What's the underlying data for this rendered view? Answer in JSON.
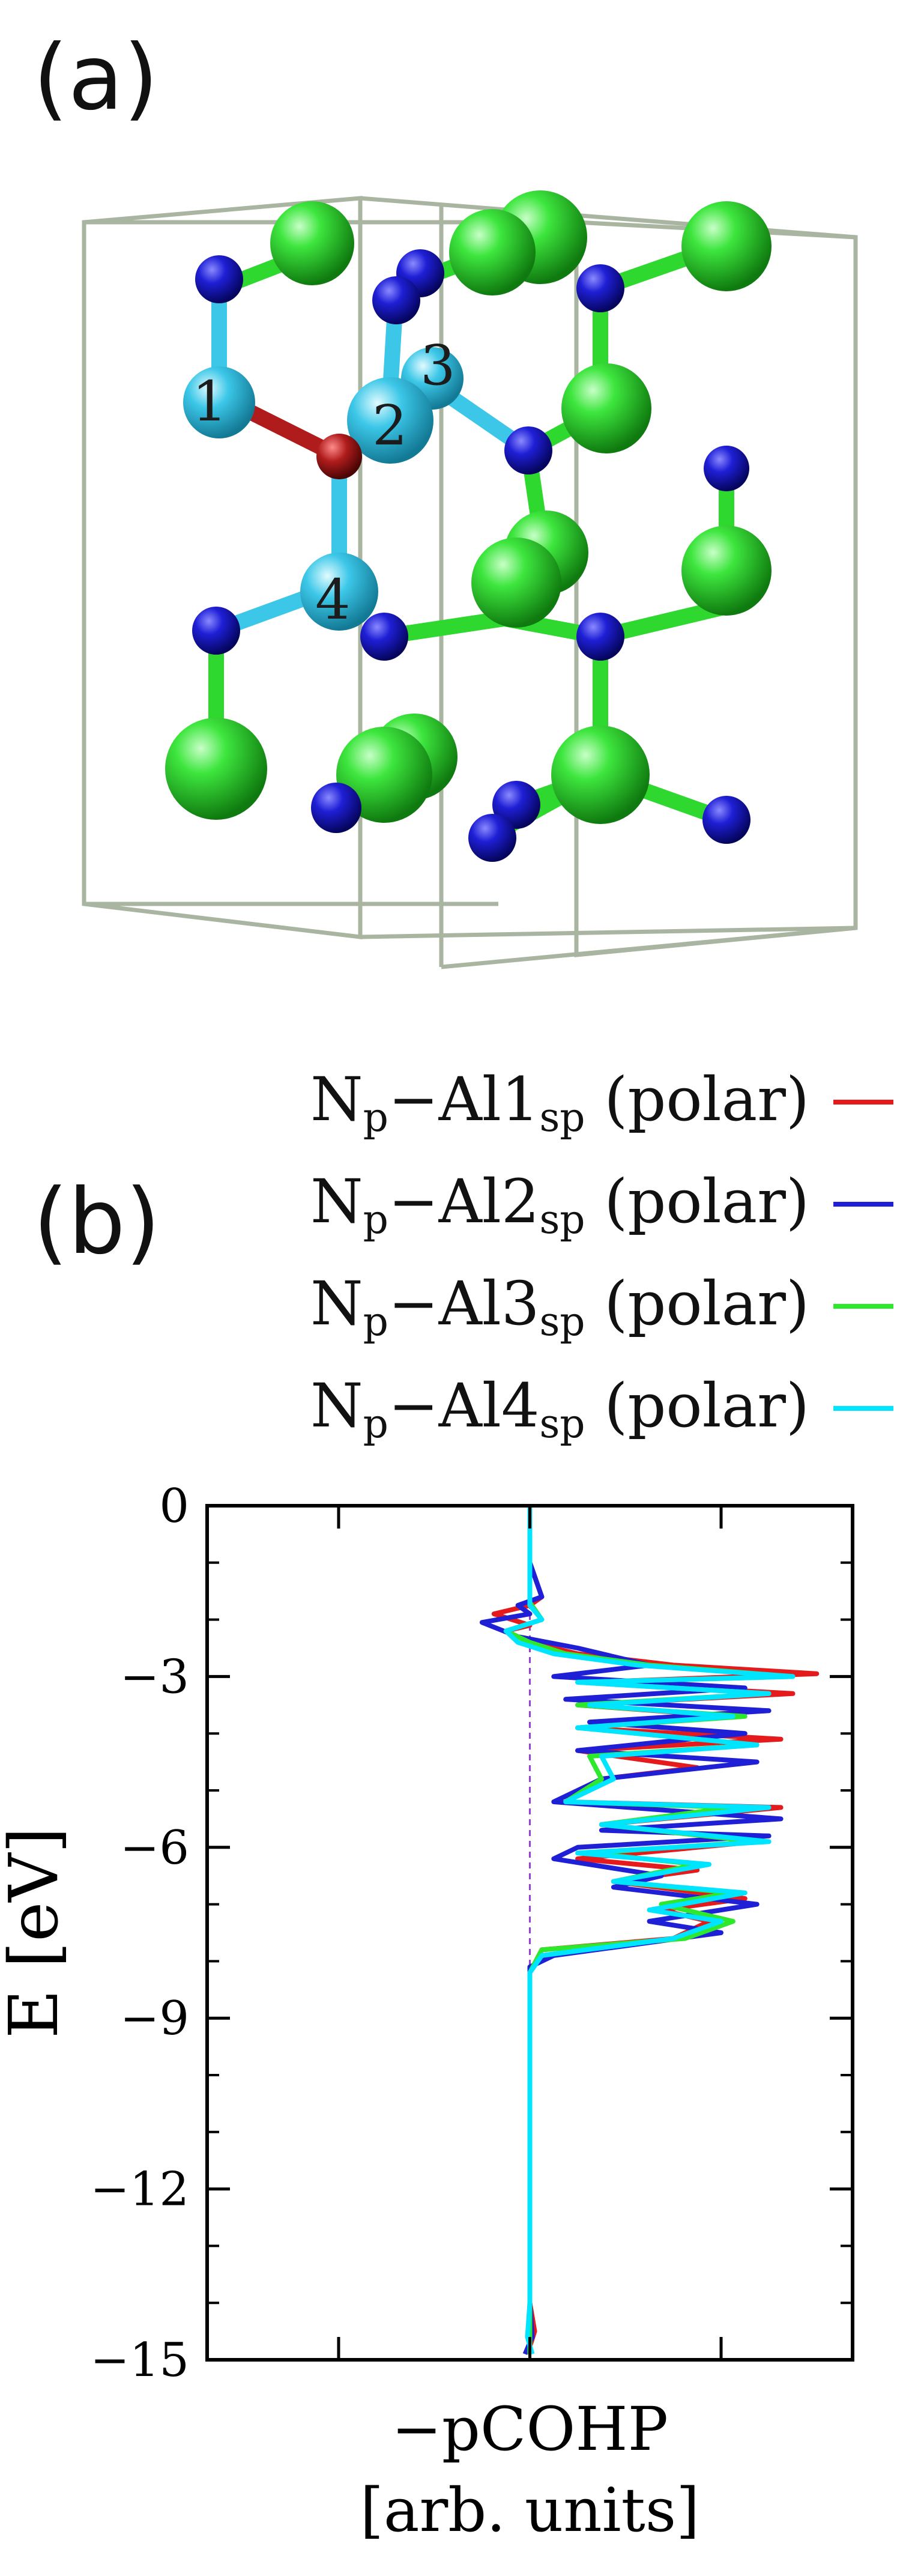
{
  "panels": {
    "a_label": "(a)",
    "b_label": "(b)"
  },
  "structure": {
    "atom_labels": [
      "1",
      "2",
      "3",
      "4"
    ],
    "colors": {
      "Al": "#2fd82f",
      "N": "#1a1acc",
      "Al_sp": "#3cc7e8",
      "N_p": "#b01c1c",
      "box": "#a9b5a0"
    }
  },
  "legend": [
    {
      "main": "N",
      "sub1": "p",
      "mid": "−Al",
      "num": "1",
      "sub2": "sp",
      "tail": " (polar)",
      "color": "#e41a1c"
    },
    {
      "main": "N",
      "sub1": "p",
      "mid": "−Al",
      "num": "2",
      "sub2": "sp",
      "tail": " (polar)",
      "color": "#1f1fd6"
    },
    {
      "main": "N",
      "sub1": "p",
      "mid": "−Al",
      "num": "3",
      "sub2": "sp",
      "tail": " (polar)",
      "color": "#2ee82e"
    },
    {
      "main": "N",
      "sub1": "p",
      "mid": "−Al",
      "num": "4",
      "sub2": "sp",
      "tail": " (polar)",
      "color": "#00e5ff"
    }
  ],
  "chart_data": {
    "type": "line",
    "ylabel": "E [eV]",
    "xlabel_line1": "−pCOHP",
    "xlabel_line2": "[arb. units]",
    "ylim": [
      -15,
      0
    ],
    "xlim": [
      -1.35,
      1.35
    ],
    "yticks": [
      0,
      -3,
      -6,
      -9,
      -12,
      -15
    ],
    "ytick_labels": [
      "0",
      "−3",
      "−6",
      "−9",
      "−12",
      "−15"
    ],
    "fermi_level": 0,
    "fermi_color": "#9a3ed6",
    "zero_line_color": "#9a3ed6",
    "series": [
      {
        "color": "#e41a1c",
        "points": [
          [
            -0.01,
            -14.9
          ],
          [
            0.02,
            -14.5
          ],
          [
            0,
            -14.0
          ],
          [
            0,
            -12.0
          ],
          [
            0,
            -10.0
          ],
          [
            0,
            -8.2
          ],
          [
            0.05,
            -7.8
          ],
          [
            0.6,
            -7.6
          ],
          [
            0.75,
            -7.3
          ],
          [
            0.55,
            -7.1
          ],
          [
            0.9,
            -6.9
          ],
          [
            0.35,
            -6.6
          ],
          [
            0.7,
            -6.4
          ],
          [
            0.2,
            -6.2
          ],
          [
            0.95,
            -5.9
          ],
          [
            0.3,
            -5.6
          ],
          [
            1.05,
            -5.3
          ],
          [
            0.15,
            -5.2
          ],
          [
            0.3,
            -4.8
          ],
          [
            0.7,
            -4.6
          ],
          [
            0.2,
            -4.3
          ],
          [
            1.05,
            -4.1
          ],
          [
            0.2,
            -3.9
          ],
          [
            0.85,
            -3.7
          ],
          [
            0.2,
            -3.5
          ],
          [
            1.1,
            -3.3
          ],
          [
            0.25,
            -3.1
          ],
          [
            1.2,
            -2.95
          ],
          [
            0.6,
            -2.8
          ],
          [
            0.2,
            -2.6
          ],
          [
            0.0,
            -2.4
          ],
          [
            -0.1,
            -2.2
          ],
          [
            0.0,
            -2.1
          ],
          [
            -0.15,
            -1.9
          ],
          [
            0.0,
            -1.75
          ],
          [
            0.05,
            -1.6
          ],
          [
            0,
            -1.0
          ],
          [
            0,
            0
          ]
        ]
      },
      {
        "color": "#1f1fd6",
        "points": [
          [
            -0.02,
            -14.9
          ],
          [
            0.01,
            -14.6
          ],
          [
            0,
            -14.0
          ],
          [
            0,
            -12.0
          ],
          [
            0,
            -10.0
          ],
          [
            0,
            -8.1
          ],
          [
            0.1,
            -7.9
          ],
          [
            0.8,
            -7.5
          ],
          [
            0.5,
            -7.3
          ],
          [
            0.95,
            -7.0
          ],
          [
            0.35,
            -6.7
          ],
          [
            0.55,
            -6.5
          ],
          [
            0.1,
            -6.2
          ],
          [
            0.2,
            -6.0
          ],
          [
            1.0,
            -5.8
          ],
          [
            0.3,
            -5.7
          ],
          [
            1.05,
            -5.5
          ],
          [
            0.1,
            -5.2
          ],
          [
            0.3,
            -4.8
          ],
          [
            0.95,
            -4.5
          ],
          [
            0.2,
            -4.3
          ],
          [
            0.9,
            -4.0
          ],
          [
            0.25,
            -3.8
          ],
          [
            1.0,
            -3.6
          ],
          [
            0.15,
            -3.4
          ],
          [
            0.9,
            -3.2
          ],
          [
            0.1,
            -3.0
          ],
          [
            0.5,
            -2.8
          ],
          [
            0.2,
            -2.5
          ],
          [
            -0.05,
            -2.3
          ],
          [
            -0.2,
            -2.05
          ],
          [
            0.0,
            -1.9
          ],
          [
            -0.05,
            -1.75
          ],
          [
            0.05,
            -1.6
          ],
          [
            0,
            -1.0
          ],
          [
            0,
            0
          ]
        ]
      },
      {
        "color": "#2ee82e",
        "points": [
          [
            0.0,
            -14.9
          ],
          [
            0.0,
            -14.5
          ],
          [
            0,
            -14.0
          ],
          [
            0,
            -12.0
          ],
          [
            0,
            -10.0
          ],
          [
            0,
            -8.2
          ],
          [
            0.05,
            -7.8
          ],
          [
            0.65,
            -7.6
          ],
          [
            0.85,
            -7.3
          ],
          [
            0.55,
            -7.0
          ],
          [
            0.85,
            -6.8
          ],
          [
            0.35,
            -6.6
          ],
          [
            0.7,
            -6.3
          ],
          [
            0.25,
            -6.1
          ],
          [
            0.95,
            -5.9
          ],
          [
            0.3,
            -5.6
          ],
          [
            0.85,
            -5.3
          ],
          [
            0.15,
            -5.2
          ],
          [
            0.3,
            -4.8
          ],
          [
            0.25,
            -4.4
          ],
          [
            0.95,
            -4.2
          ],
          [
            0.2,
            -3.9
          ],
          [
            0.9,
            -3.7
          ],
          [
            0.2,
            -3.5
          ],
          [
            1.0,
            -3.3
          ],
          [
            0.2,
            -3.1
          ],
          [
            1.1,
            -3.0
          ],
          [
            0.5,
            -2.8
          ],
          [
            0.15,
            -2.6
          ],
          [
            0.0,
            -2.4
          ],
          [
            -0.1,
            -2.2
          ],
          [
            0.05,
            -2.0
          ],
          [
            0.0,
            -1.7
          ],
          [
            0,
            -1.0
          ],
          [
            0,
            0
          ]
        ]
      },
      {
        "color": "#00e5ff",
        "points": [
          [
            0.01,
            -14.9
          ],
          [
            -0.01,
            -14.6
          ],
          [
            0,
            -14.0
          ],
          [
            0,
            -12.0
          ],
          [
            0,
            -10.0
          ],
          [
            0,
            -8.2
          ],
          [
            0.05,
            -7.9
          ],
          [
            0.6,
            -7.6
          ],
          [
            0.8,
            -7.3
          ],
          [
            0.5,
            -7.1
          ],
          [
            0.9,
            -6.8
          ],
          [
            0.35,
            -6.6
          ],
          [
            0.75,
            -6.3
          ],
          [
            0.2,
            -6.1
          ],
          [
            1.0,
            -5.9
          ],
          [
            0.3,
            -5.6
          ],
          [
            1.0,
            -5.3
          ],
          [
            0.15,
            -5.2
          ],
          [
            0.35,
            -4.8
          ],
          [
            0.3,
            -4.4
          ],
          [
            0.95,
            -4.2
          ],
          [
            0.2,
            -3.9
          ],
          [
            0.85,
            -3.7
          ],
          [
            0.25,
            -3.5
          ],
          [
            1.0,
            -3.3
          ],
          [
            0.2,
            -3.1
          ],
          [
            1.1,
            -3.0
          ],
          [
            0.45,
            -2.8
          ],
          [
            0.1,
            -2.6
          ],
          [
            -0.05,
            -2.4
          ],
          [
            -0.1,
            -2.2
          ],
          [
            0.05,
            -2.0
          ],
          [
            0.0,
            -1.75
          ],
          [
            0,
            -1.0
          ],
          [
            0,
            0
          ]
        ]
      }
    ]
  }
}
